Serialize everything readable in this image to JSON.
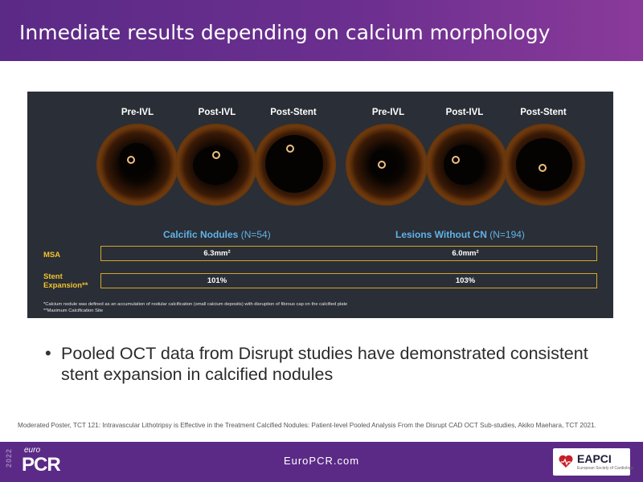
{
  "slide": {
    "title": "Inmediate results depending on calcium morphology",
    "panel": {
      "column_labels": [
        "Pre-IVL",
        "Post-IVL",
        "Post-Stent",
        "Pre-IVL",
        "Post-IVL",
        "Post-Stent"
      ],
      "group1": {
        "name": "Calcific Nodules",
        "n": "(N=54)"
      },
      "group2": {
        "name": "Lesions Without CN",
        "n": "(N=194)"
      },
      "rows": [
        {
          "label": "MSA",
          "values": [
            "6.3mm²",
            "6.0mm²"
          ]
        },
        {
          "label": "Stent Expansion**",
          "values": [
            "101%",
            "103%"
          ]
        }
      ],
      "footnotes": [
        "*Calcium nodule was defined as an accumulation of nodular calcification (small calcium deposits) with disruption of fibrous cap on the calcified plate",
        "**Maximum Calcification Site"
      ],
      "colors": {
        "background": "#2a2e36",
        "accent_blue": "#5fb3e8",
        "accent_gold": "#d4a72a"
      }
    },
    "bullets": [
      "Pooled OCT data from Disrupt studies have demonstrated consistent stent expansion in calcified nodules"
    ],
    "reference": "Moderated Poster, TCT 121: Intravascular Lithotripsy is Effective in the Treatment Calcified Nodules: Patient-level Pooled Analysis From the Disrupt CAD OCT Sub-studies, Akiko Maehara, TCT 2021."
  },
  "footer": {
    "site": "EuroPCR.com",
    "logo_year": "2022",
    "logo_euro": "euro",
    "logo_pcr": "PCR",
    "eapci_label": "EAPCI",
    "eapci_sub": "European Society of Cardiology",
    "brand_color": "#5b2a86"
  }
}
